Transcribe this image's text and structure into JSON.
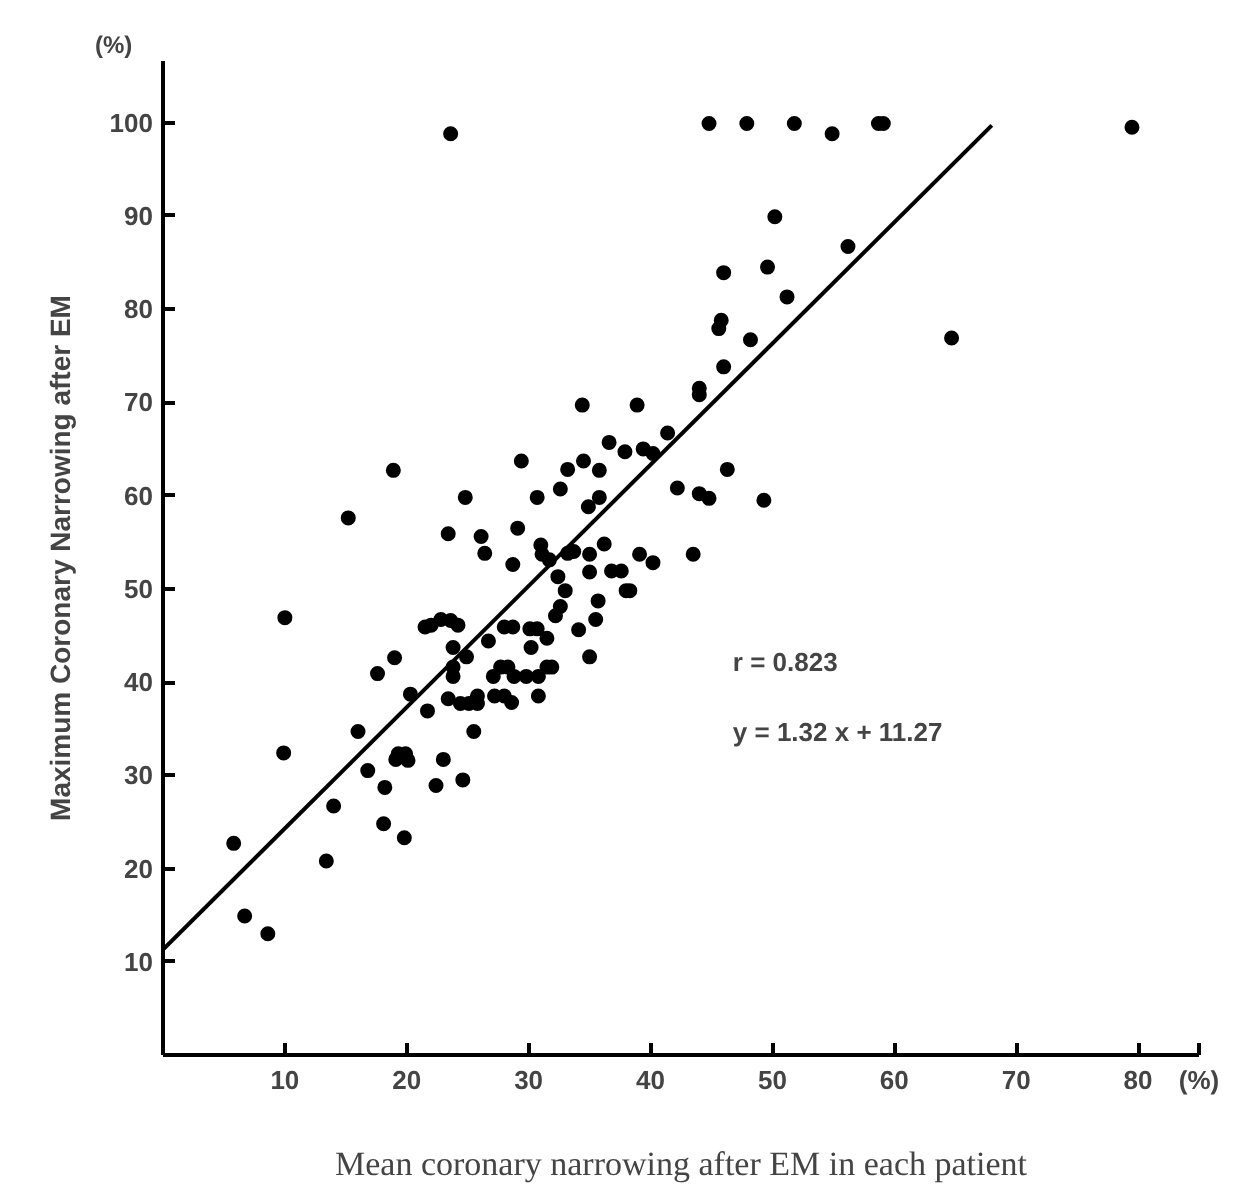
{
  "chart_data": {
    "type": "scatter",
    "xlabel": "Mean coronary narrowing after EM in each patient",
    "ylabel": "Maximum Coronary Narrowing after EM",
    "xlim": [
      0,
      85
    ],
    "ylim": [
      0,
      106.6
    ],
    "xticks": [
      10,
      20,
      30,
      40,
      50,
      60,
      70,
      80,
      {
        "value": 85,
        "label": "(%)"
      }
    ],
    "yticks": [
      10,
      20,
      30,
      40,
      50,
      60,
      70,
      80,
      90,
      100
    ],
    "grid": false,
    "annotations": [
      "r = 0.823",
      "y = 1.32 x + 11.27",
      "(%)"
    ],
    "series": [
      {
        "color": "#000000",
        "marker": "circle",
        "x": [
          23.6,
          44.8,
          47.9,
          51.8,
          54.9,
          58.7,
          59.1,
          79.5,
          50.2,
          56.2,
          46.0,
          49.6,
          51.2,
          45.8,
          45.6,
          48.2,
          46.0,
          44.0,
          44.0,
          64.7,
          34.4,
          38.9,
          41.4,
          29.4,
          18.9,
          33.2,
          34.5,
          35.8,
          36.6,
          37.9,
          39.4,
          40.2,
          46.3,
          24.8,
          30.7,
          32.6,
          34.9,
          35.8,
          42.2,
          44.0,
          44.8,
          49.3,
          15.2,
          23.4,
          26.1,
          29.1,
          26.4,
          31.0,
          33.2,
          36.2,
          39.1,
          43.5,
          35.0,
          28.7,
          31.1,
          31.7,
          33.7,
          32.4,
          33.0,
          35.0,
          36.8,
          37.6,
          38.0,
          38.3,
          40.2,
          35.7,
          35.5,
          32.6,
          32.2,
          34.1,
          35.0,
          31.5,
          30.7,
          30.1,
          28.7,
          28.0,
          30.2,
          26.7,
          31.9,
          31.5,
          30.8,
          29.8,
          28.8,
          28.3,
          27.7,
          27.1,
          30.8,
          28.6,
          28.0,
          27.2,
          25.8,
          25.8,
          25.1,
          24.4,
          23.4,
          21.5,
          22.0,
          22.8,
          23.6,
          24.2,
          23.8,
          24.9,
          23.8,
          23.8,
          20.3,
          21.7,
          25.5,
          19.0,
          17.6,
          16.0,
          19.3,
          19.9,
          20.1,
          19.1,
          16.8,
          23.0,
          22.4,
          24.6,
          18.2,
          14.0,
          18.1,
          19.8,
          13.4,
          10.0,
          9.9,
          5.8,
          6.7,
          8.6
        ],
        "values": [
          98.8,
          99.9,
          99.9,
          99.9,
          98.8,
          99.9,
          99.9,
          99.5,
          89.9,
          86.7,
          83.9,
          84.5,
          81.3,
          78.8,
          77.9,
          76.7,
          73.8,
          71.5,
          70.8,
          76.9,
          69.7,
          69.7,
          66.7,
          63.7,
          62.7,
          62.8,
          63.7,
          62.7,
          65.7,
          64.7,
          65.0,
          64.5,
          62.8,
          59.8,
          59.8,
          60.7,
          58.8,
          59.8,
          60.8,
          60.2,
          59.7,
          59.5,
          57.6,
          55.9,
          55.6,
          56.5,
          53.8,
          54.7,
          53.8,
          54.8,
          53.7,
          53.7,
          53.7,
          52.6,
          53.7,
          53.1,
          54.0,
          51.3,
          49.8,
          51.8,
          51.9,
          51.9,
          49.8,
          49.8,
          52.8,
          48.7,
          46.7,
          48.1,
          47.1,
          45.6,
          42.7,
          44.7,
          45.7,
          45.7,
          45.9,
          45.9,
          43.7,
          44.4,
          41.6,
          41.6,
          40.6,
          40.6,
          40.6,
          41.6,
          41.6,
          40.6,
          38.5,
          37.8,
          38.5,
          38.5,
          38.5,
          37.7,
          37.7,
          37.7,
          38.2,
          45.9,
          46.1,
          46.7,
          46.6,
          46.1,
          43.7,
          42.7,
          41.6,
          40.6,
          38.7,
          36.9,
          34.7,
          42.6,
          40.9,
          34.7,
          32.3,
          32.3,
          31.6,
          31.7,
          30.5,
          31.7,
          28.9,
          29.5,
          28.7,
          26.7,
          24.8,
          23.3,
          20.8,
          46.9,
          32.4,
          22.7,
          14.9,
          13.0
        ]
      },
      {
        "type": "line",
        "color": "#000000",
        "x": [
          0,
          68
        ],
        "values": [
          11.3,
          99.7
        ]
      }
    ]
  }
}
